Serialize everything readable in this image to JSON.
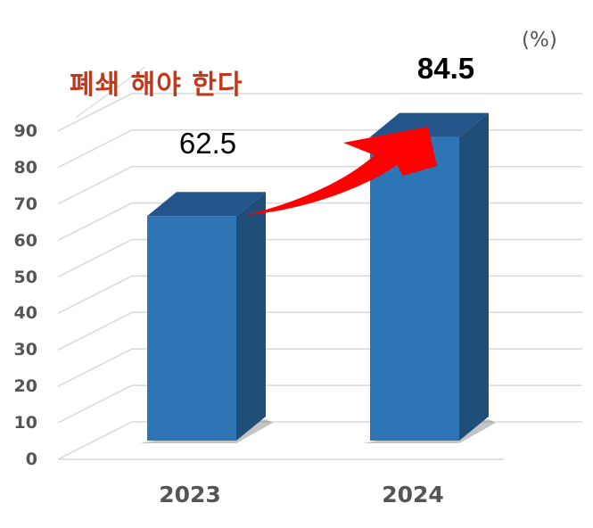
{
  "chart_data": {
    "type": "bar",
    "style": "3d-column",
    "title": "폐쇄 해야 한다",
    "unit_label": "(%)",
    "xlabel": "",
    "ylabel": "",
    "categories": [
      "2023",
      "2024"
    ],
    "values": [
      62.5,
      84.5
    ],
    "data_labels": [
      "62.5",
      "84.5"
    ],
    "ylim": [
      0,
      90
    ],
    "yticks": [
      "0",
      "10",
      "20",
      "30",
      "40",
      "50",
      "60",
      "70",
      "80",
      "90"
    ],
    "grid": true,
    "legend": null,
    "annotations": [
      {
        "type": "arrow",
        "from": "2023",
        "to": "2024",
        "color": "#ff0000",
        "direction": "up-right"
      }
    ],
    "colors": {
      "bar_front": "#2e75b6",
      "bar_top": "#24558a",
      "bar_side": "#1f4e79",
      "title": "#c0391b",
      "arrow": "#ff0000",
      "tick_text": "#555555",
      "gridline": "#d9d9d9"
    }
  }
}
